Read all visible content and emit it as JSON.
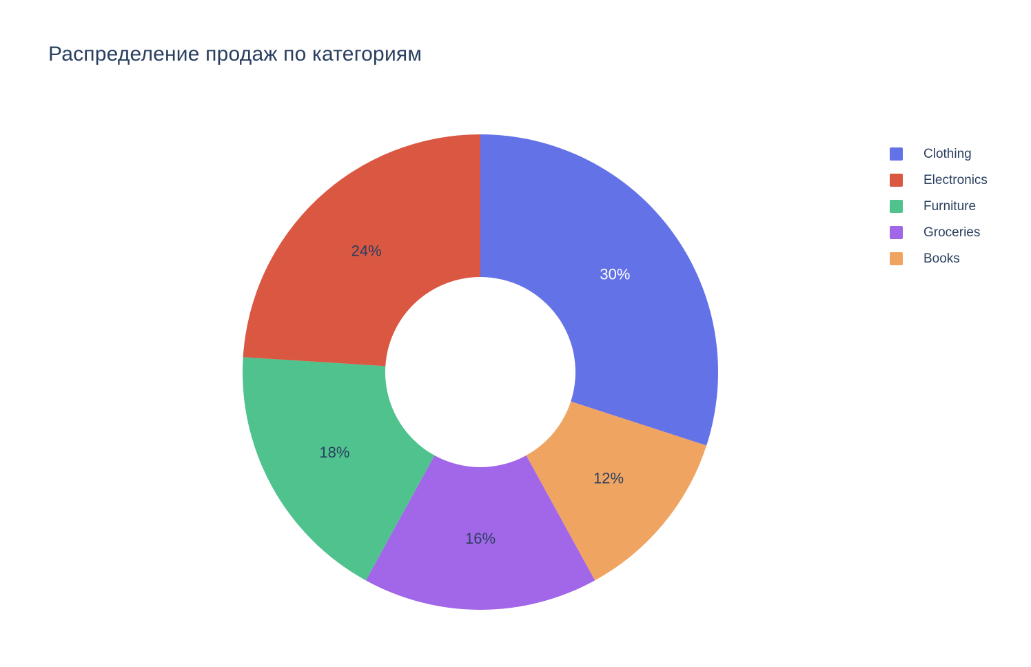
{
  "chart_data": {
    "type": "pie",
    "title": "Распределение продаж по категориям",
    "hole": 0.4,
    "direction": "clockwise",
    "start_angle": "top",
    "legend_position": "right",
    "labels": [
      "Clothing",
      "Electronics",
      "Furniture",
      "Groceries",
      "Books"
    ],
    "values": [
      30,
      24,
      18,
      16,
      12
    ],
    "unit": "%",
    "slices": [
      {
        "label": "Clothing",
        "value": 30,
        "text": "30%",
        "color": "#6472E8",
        "text_color": "#ffffff"
      },
      {
        "label": "Books",
        "value": 12,
        "text": "12%",
        "color": "#F0A462",
        "text_color": "#2a3f5f"
      },
      {
        "label": "Groceries",
        "value": 16,
        "text": "16%",
        "color": "#A266E8",
        "text_color": "#2a3f5f"
      },
      {
        "label": "Furniture",
        "value": 18,
        "text": "18%",
        "color": "#4FC28E",
        "text_color": "#2a3f5f"
      },
      {
        "label": "Electronics",
        "value": 24,
        "text": "24%",
        "color": "#DA5742",
        "text_color": "#2a3f5f"
      }
    ],
    "legend_order": [
      "Clothing",
      "Electronics",
      "Furniture",
      "Groceries",
      "Books"
    ]
  }
}
